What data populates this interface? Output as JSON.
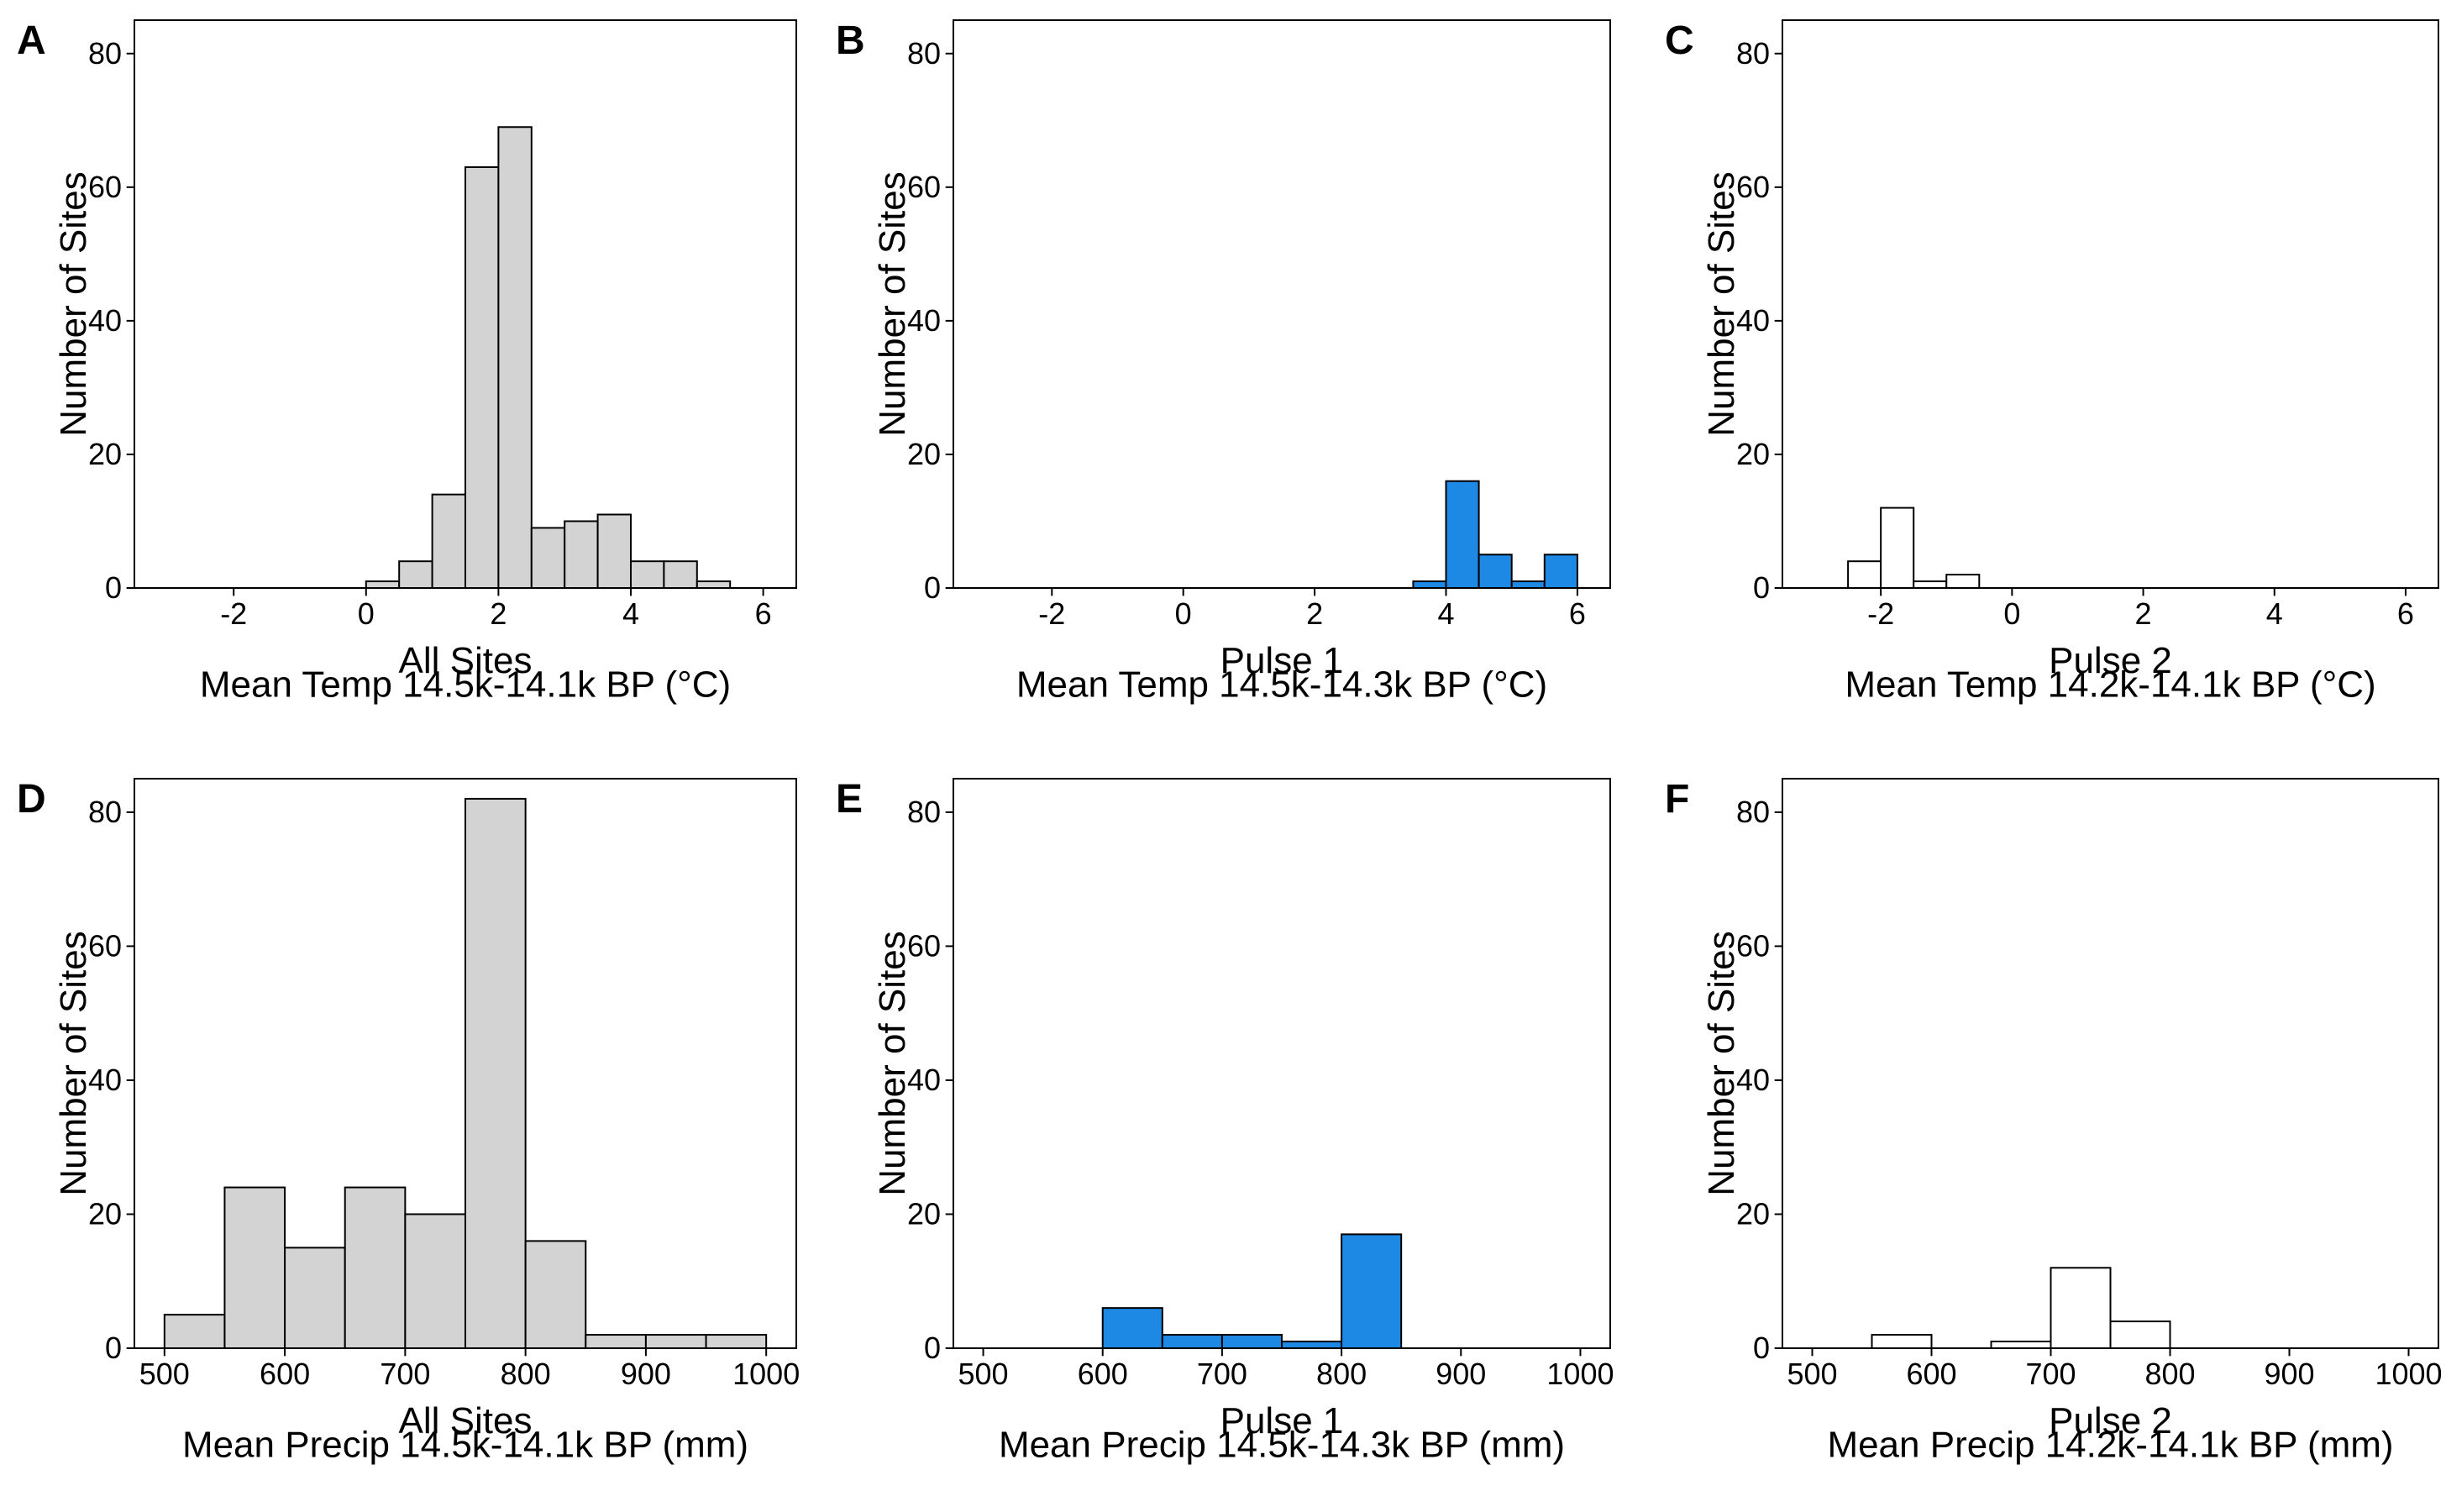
{
  "chart_data": [
    {
      "panel": "A",
      "type": "bar",
      "xlabel_line1": "All Sites",
      "xlabel_line2": "Mean Temp 14.5k-14.1k BP (°C)",
      "ylabel": "Number of Sites",
      "bar_color": "#d3d3d3",
      "xlim": [
        -3.5,
        6.5
      ],
      "ylim": [
        0,
        85
      ],
      "xticks": [
        -2,
        0,
        2,
        4,
        6
      ],
      "yticks": [
        0,
        20,
        40,
        60,
        80
      ],
      "bins": [
        {
          "x0": 0.0,
          "x1": 0.5,
          "value": 1
        },
        {
          "x0": 0.5,
          "x1": 1.0,
          "value": 4
        },
        {
          "x0": 1.0,
          "x1": 1.5,
          "value": 14
        },
        {
          "x0": 1.5,
          "x1": 2.0,
          "value": 63
        },
        {
          "x0": 2.0,
          "x1": 2.5,
          "value": 69
        },
        {
          "x0": 2.5,
          "x1": 3.0,
          "value": 9
        },
        {
          "x0": 3.0,
          "x1": 3.5,
          "value": 10
        },
        {
          "x0": 3.5,
          "x1": 4.0,
          "value": 11
        },
        {
          "x0": 4.0,
          "x1": 4.5,
          "value": 4
        },
        {
          "x0": 4.5,
          "x1": 5.0,
          "value": 4
        },
        {
          "x0": 5.0,
          "x1": 5.5,
          "value": 1
        }
      ]
    },
    {
      "panel": "B",
      "type": "bar",
      "xlabel_line1": "Pulse 1",
      "xlabel_line2": "Mean Temp 14.5k-14.3k BP (°C)",
      "ylabel": "Number of Sites",
      "bar_color": "#1e88e5",
      "xlim": [
        -3.5,
        6.5
      ],
      "ylim": [
        0,
        85
      ],
      "xticks": [
        -2,
        0,
        2,
        4,
        6
      ],
      "yticks": [
        0,
        20,
        40,
        60,
        80
      ],
      "bins": [
        {
          "x0": 3.5,
          "x1": 4.0,
          "value": 1
        },
        {
          "x0": 4.0,
          "x1": 4.5,
          "value": 16
        },
        {
          "x0": 4.5,
          "x1": 5.0,
          "value": 5
        },
        {
          "x0": 5.0,
          "x1": 5.5,
          "value": 1
        },
        {
          "x0": 5.5,
          "x1": 6.0,
          "value": 5
        }
      ]
    },
    {
      "panel": "C",
      "type": "bar",
      "xlabel_line1": "Pulse 2",
      "xlabel_line2": "Mean Temp 14.2k-14.1k BP (°C)",
      "ylabel": "Number of Sites",
      "bar_color": "#ffffff",
      "xlim": [
        -3.5,
        6.5
      ],
      "ylim": [
        0,
        85
      ],
      "xticks": [
        -2,
        0,
        2,
        4,
        6
      ],
      "yticks": [
        0,
        20,
        40,
        60,
        80
      ],
      "bins": [
        {
          "x0": -2.5,
          "x1": -2.0,
          "value": 4
        },
        {
          "x0": -2.0,
          "x1": -1.5,
          "value": 12
        },
        {
          "x0": -1.5,
          "x1": -1.0,
          "value": 1
        },
        {
          "x0": -1.0,
          "x1": -0.5,
          "value": 2
        }
      ]
    },
    {
      "panel": "D",
      "type": "bar",
      "xlabel_line1": "All Sites",
      "xlabel_line2": "Mean Precip 14.5k-14.1k BP (mm)",
      "ylabel": "Number of Sites",
      "bar_color": "#d3d3d3",
      "xlim": [
        475,
        1025
      ],
      "ylim": [
        0,
        85
      ],
      "xticks": [
        500,
        600,
        700,
        800,
        900,
        1000
      ],
      "yticks": [
        0,
        20,
        40,
        60,
        80
      ],
      "bins": [
        {
          "x0": 500,
          "x1": 550,
          "value": 5
        },
        {
          "x0": 550,
          "x1": 600,
          "value": 24
        },
        {
          "x0": 600,
          "x1": 650,
          "value": 15
        },
        {
          "x0": 650,
          "x1": 700,
          "value": 24
        },
        {
          "x0": 700,
          "x1": 750,
          "value": 20
        },
        {
          "x0": 750,
          "x1": 800,
          "value": 82
        },
        {
          "x0": 800,
          "x1": 850,
          "value": 16
        },
        {
          "x0": 850,
          "x1": 900,
          "value": 2
        },
        {
          "x0": 900,
          "x1": 950,
          "value": 2
        },
        {
          "x0": 950,
          "x1": 1000,
          "value": 2
        }
      ]
    },
    {
      "panel": "E",
      "type": "bar",
      "xlabel_line1": "Pulse 1",
      "xlabel_line2": "Mean Precip 14.5k-14.3k BP (mm)",
      "ylabel": "Number of Sites",
      "bar_color": "#1e88e5",
      "xlim": [
        475,
        1025
      ],
      "ylim": [
        0,
        85
      ],
      "xticks": [
        500,
        600,
        700,
        800,
        900,
        1000
      ],
      "yticks": [
        0,
        20,
        40,
        60,
        80
      ],
      "bins": [
        {
          "x0": 600,
          "x1": 650,
          "value": 6
        },
        {
          "x0": 650,
          "x1": 700,
          "value": 2
        },
        {
          "x0": 700,
          "x1": 750,
          "value": 2
        },
        {
          "x0": 750,
          "x1": 800,
          "value": 1
        },
        {
          "x0": 800,
          "x1": 850,
          "value": 17
        }
      ]
    },
    {
      "panel": "F",
      "type": "bar",
      "xlabel_line1": "Pulse 2",
      "xlabel_line2": "Mean Precip 14.2k-14.1k BP (mm)",
      "ylabel": "Number of Sites",
      "bar_color": "#ffffff",
      "xlim": [
        475,
        1025
      ],
      "ylim": [
        0,
        85
      ],
      "xticks": [
        500,
        600,
        700,
        800,
        900,
        1000
      ],
      "yticks": [
        0,
        20,
        40,
        60,
        80
      ],
      "bins": [
        {
          "x0": 550,
          "x1": 600,
          "value": 2
        },
        {
          "x0": 650,
          "x1": 700,
          "value": 1
        },
        {
          "x0": 700,
          "x1": 750,
          "value": 12
        },
        {
          "x0": 750,
          "x1": 800,
          "value": 4
        }
      ]
    }
  ]
}
